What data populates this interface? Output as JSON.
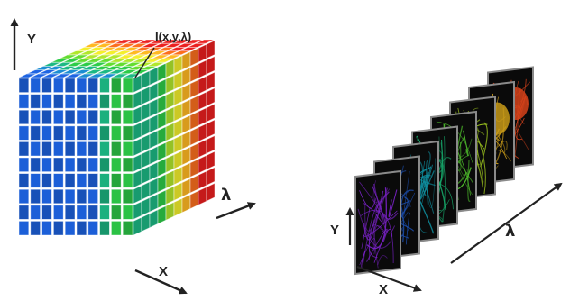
{
  "cube": {
    "axis_y": "Y",
    "axis_x": "X",
    "axis_lambda": "λ",
    "pixel_label": "I(x,y,λ)",
    "grid_cells": 10,
    "colors": {
      "spectrum": [
        "#1c5fd8",
        "#1a86c8",
        "#1bb07e",
        "#2bc245",
        "#5ed22e",
        "#a9dc2a",
        "#e8e42a",
        "#f5b020",
        "#f06a1c",
        "#e01e1e"
      ]
    }
  },
  "stack": {
    "axis_y": "Y",
    "axis_x": "X",
    "axis_lambda": "λ",
    "slice_count": 8,
    "colors": {
      "slices": [
        "#7a22c8",
        "#1b4fb0",
        "#0f8fa0",
        "#16a86a",
        "#4cb82a",
        "#9bc21e",
        "#c89a18",
        "#d6421a"
      ]
    }
  }
}
